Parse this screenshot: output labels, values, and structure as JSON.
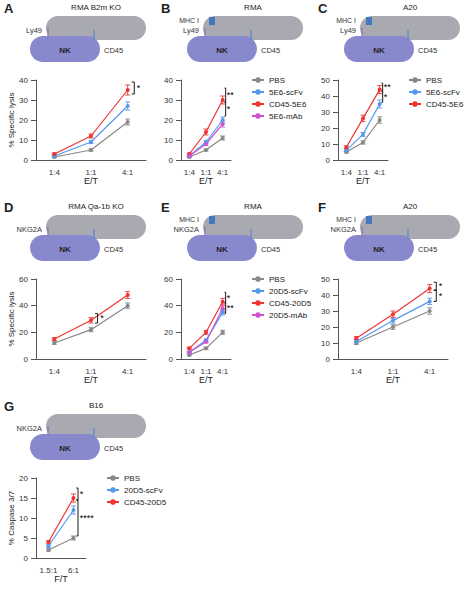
{
  "chart_data": [
    {
      "type": "line",
      "title": "A",
      "subtitle": "RMA B2m KO",
      "annotations": [
        "NK",
        "Ly49",
        "CD45"
      ],
      "categories": [
        "1:4",
        "1:1",
        "4:1"
      ],
      "xlabel": "E/T",
      "ylabel": "% Specific lysis",
      "ylim": [
        0,
        40
      ],
      "yticks": [
        0,
        10,
        20,
        30,
        40
      ],
      "grid": false,
      "marker": "circle",
      "series": [
        {
          "name": "PBS",
          "color": "#888888",
          "values": [
            1.5,
            5,
            19
          ],
          "err": [
            0.4,
            0.6,
            1.5
          ]
        },
        {
          "name": "5E6-scFv",
          "color": "#5599ee",
          "values": [
            2,
            9,
            27
          ],
          "err": [
            0.4,
            0.8,
            2.0
          ]
        },
        {
          "name": "CD45-5E6",
          "color": "#ee3333",
          "values": [
            3,
            12,
            35
          ],
          "err": [
            0.5,
            1.0,
            2.5
          ]
        }
      ],
      "significance": [
        {
          "x": "4:1",
          "y1": 33,
          "y2": 39,
          "text": "*"
        }
      ]
    },
    {
      "type": "line",
      "title": "B",
      "subtitle": "RMA",
      "annotations": [
        "NK",
        "Ly49",
        "CD45",
        "MHC I"
      ],
      "categories": [
        "1:4",
        "1:1",
        "4:1"
      ],
      "xlabel": "E/T",
      "ylim": [
        0,
        40
      ],
      "yticks": [
        0,
        10,
        20,
        30,
        40
      ],
      "grid": false,
      "marker": "circle",
      "legend": "right",
      "series": [
        {
          "name": "PBS",
          "color": "#888888",
          "values": [
            1.5,
            5,
            11
          ],
          "err": [
            0.3,
            0.5,
            1.0
          ]
        },
        {
          "name": "5E6-scFv",
          "color": "#5599ee",
          "values": [
            2,
            9,
            20
          ],
          "err": [
            0.4,
            0.8,
            1.5
          ]
        },
        {
          "name": "CD45-5E6",
          "color": "#ee3333",
          "values": [
            3,
            14,
            30
          ],
          "err": [
            0.5,
            1.5,
            2.0
          ]
        },
        {
          "name": "5E6-mAb",
          "color": "#cc55cc",
          "values": [
            2,
            8,
            18
          ],
          "err": [
            0.4,
            0.8,
            1.5
          ]
        }
      ],
      "significance": [
        {
          "x": "4:1",
          "y1": 29,
          "y2": 36,
          "text": "**"
        },
        {
          "x": "4:1",
          "y1": 22,
          "y2": 29,
          "text": "*"
        }
      ]
    },
    {
      "type": "line",
      "title": "C",
      "subtitle": "A20",
      "annotations": [
        "NK",
        "Ly49",
        "CD45",
        "MHC I"
      ],
      "categories": [
        "1:4",
        "1:1",
        "4:1"
      ],
      "xlabel": "E/T",
      "ylim": [
        0,
        50
      ],
      "yticks": [
        0,
        10,
        20,
        30,
        40,
        50
      ],
      "grid": false,
      "marker": "circle",
      "legend": "right",
      "series": [
        {
          "name": "PBS",
          "color": "#888888",
          "values": [
            5,
            11,
            25
          ],
          "err": [
            0.6,
            1.0,
            2.0
          ]
        },
        {
          "name": "5E6-scFv",
          "color": "#5599ee",
          "values": [
            6,
            16,
            35
          ],
          "err": [
            0.7,
            1.2,
            2.5
          ]
        },
        {
          "name": "CD45-5E6",
          "color": "#ee3333",
          "values": [
            8,
            26,
            44
          ],
          "err": [
            0.8,
            2.0,
            2.5
          ]
        }
      ],
      "significance": [
        {
          "x": "4:1",
          "y1": 43,
          "y2": 48,
          "text": "**"
        },
        {
          "x": "4:1",
          "y1": 36,
          "y2": 43,
          "text": "*"
        }
      ]
    },
    {
      "type": "line",
      "title": "D",
      "subtitle": "RMA Qa-1b KO",
      "annotations": [
        "NK",
        "NKG2A",
        "CD45"
      ],
      "categories": [
        "1:4",
        "1:1",
        "4:1"
      ],
      "xlabel": "E/T",
      "ylabel": "% Specific lysis",
      "ylim": [
        0,
        60
      ],
      "yticks": [
        0,
        20,
        40,
        60
      ],
      "grid": false,
      "marker": "circle",
      "series": [
        {
          "name": "PBS",
          "color": "#888888",
          "values": [
            12,
            22,
            40
          ],
          "err": [
            1.0,
            1.5,
            2.0
          ]
        },
        {
          "name": "CD45-20D5",
          "color": "#ee3333",
          "values": [
            15,
            29,
            48
          ],
          "err": [
            1.0,
            2.0,
            2.5
          ]
        }
      ],
      "significance": [
        {
          "x": "1:1",
          "y1": 27,
          "y2": 34,
          "text": "*"
        }
      ]
    },
    {
      "type": "line",
      "title": "E",
      "subtitle": "RMA",
      "annotations": [
        "NK",
        "NKG2A",
        "CD45",
        "MHC I"
      ],
      "categories": [
        "1:4",
        "1:1",
        "4:1"
      ],
      "xlabel": "E/T",
      "ylim": [
        0,
        60
      ],
      "yticks": [
        0,
        20,
        40,
        60
      ],
      "grid": false,
      "marker": "circle",
      "legend": "right",
      "series": [
        {
          "name": "PBS",
          "color": "#888888",
          "values": [
            3,
            8,
            20
          ],
          "err": [
            0.5,
            0.8,
            1.5
          ]
        },
        {
          "name": "20D5-scFv",
          "color": "#5599ee",
          "values": [
            5,
            14,
            35
          ],
          "err": [
            0.5,
            1.0,
            2.0
          ]
        },
        {
          "name": "CD45-20D5",
          "color": "#ee3333",
          "values": [
            8,
            20,
            43
          ],
          "err": [
            0.8,
            1.5,
            2.5
          ]
        },
        {
          "name": "20D5-mAb",
          "color": "#cc55cc",
          "values": [
            5,
            13,
            38
          ],
          "err": [
            0.5,
            1.0,
            2.0
          ]
        }
      ],
      "significance": [
        {
          "x": "4:1",
          "y1": 42,
          "y2": 50,
          "text": "*"
        },
        {
          "x": "4:1",
          "y1": 34,
          "y2": 42,
          "text": "**"
        }
      ]
    },
    {
      "type": "line",
      "title": "F",
      "subtitle": "A20",
      "annotations": [
        "NK",
        "NKG2A",
        "CD45",
        "MHC I"
      ],
      "categories": [
        "1:4",
        "1:1",
        "4:1"
      ],
      "xlabel": "E/T",
      "ylim": [
        0,
        50
      ],
      "yticks": [
        0,
        10,
        20,
        30,
        40,
        50
      ],
      "grid": false,
      "marker": "circle",
      "series": [
        {
          "name": "PBS",
          "color": "#888888",
          "values": [
            10,
            20,
            30
          ],
          "err": [
            1.0,
            1.5,
            2.0
          ]
        },
        {
          "name": "20D5-scFv",
          "color": "#5599ee",
          "values": [
            11,
            24,
            36
          ],
          "err": [
            1.0,
            1.5,
            2.0
          ]
        },
        {
          "name": "CD45-20D5",
          "color": "#ee3333",
          "values": [
            13,
            28,
            44
          ],
          "err": [
            1.0,
            2.0,
            2.5
          ]
        }
      ],
      "significance": [
        {
          "x": "4:1",
          "y1": 43,
          "y2": 48,
          "text": "*"
        },
        {
          "x": "4:1",
          "y1": 36,
          "y2": 43,
          "text": "*"
        }
      ]
    },
    {
      "type": "line",
      "title": "G",
      "subtitle": "B16",
      "annotations": [
        "NK",
        "NKG2A",
        "CD45"
      ],
      "categories": [
        "1.5:1",
        "6:1"
      ],
      "xlabel": "F/T",
      "ylabel": "% Caspase 3/7",
      "ylim": [
        0,
        20
      ],
      "yticks": [
        0,
        5,
        10,
        15,
        20
      ],
      "grid": false,
      "marker": "circle",
      "legend": "right",
      "series": [
        {
          "name": "PBS",
          "color": "#888888",
          "values": [
            2,
            5
          ],
          "err": [
            0.3,
            0.5
          ]
        },
        {
          "name": "20D5-scFv",
          "color": "#5599ee",
          "values": [
            3,
            12
          ],
          "err": [
            0.3,
            1.0
          ]
        },
        {
          "name": "CD45-20D5",
          "color": "#ee3333",
          "values": [
            4,
            15
          ],
          "err": [
            0.3,
            1.0
          ]
        }
      ],
      "significance": [
        {
          "x": "6:1",
          "y1": 14.5,
          "y2": 17.5,
          "text": "*"
        },
        {
          "x": "6:1",
          "y1": 5.5,
          "y2": 14.5,
          "text": "****"
        }
      ]
    }
  ]
}
